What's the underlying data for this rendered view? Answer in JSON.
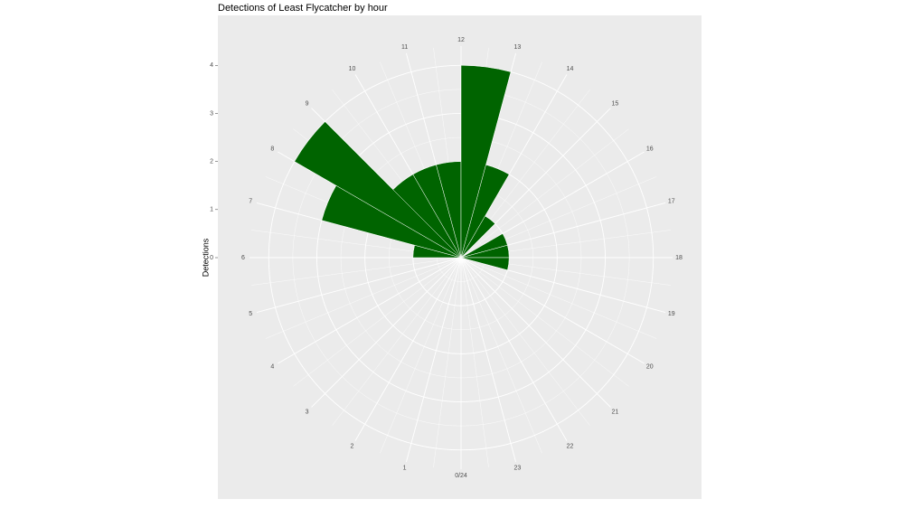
{
  "chart_data": {
    "type": "polar-bar",
    "title": "Detections of Least Flycatcher by hour",
    "y_label": "Detections",
    "x": [
      0,
      1,
      2,
      3,
      4,
      5,
      6,
      7,
      8,
      9,
      10,
      11,
      12,
      13,
      14,
      15,
      16,
      17,
      18,
      19,
      20,
      21,
      22,
      23
    ],
    "values": [
      0,
      0,
      0,
      0,
      0,
      0,
      1,
      3,
      4,
      2,
      2,
      2,
      4,
      2,
      1,
      0,
      1,
      1,
      1,
      0,
      0,
      0,
      0,
      0
    ],
    "color": "#006400",
    "xlim": [
      0,
      24
    ],
    "xticks": [
      {
        "value": 0,
        "label": "0/24"
      },
      1,
      2,
      3,
      4,
      5,
      6,
      7,
      8,
      9,
      10,
      11,
      12,
      13,
      14,
      15,
      16,
      17,
      18,
      19,
      20,
      21,
      22,
      23
    ],
    "ylim": [
      0,
      4.4
    ],
    "yticks": [
      0,
      1,
      2,
      3,
      4
    ],
    "grid": true
  }
}
